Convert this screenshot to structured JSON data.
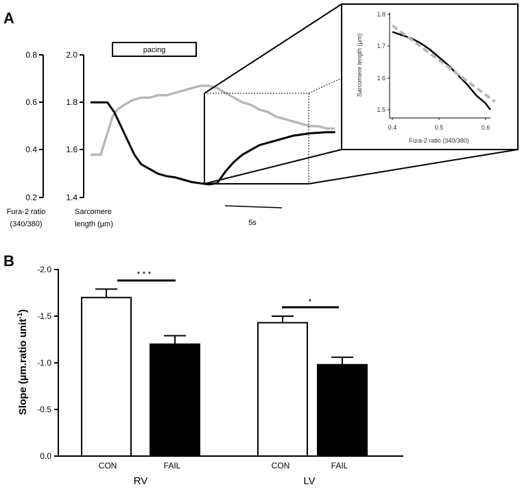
{
  "panel_a": {
    "label": "A",
    "pacing_label": "pacing",
    "fura_axis": {
      "ticks": [
        "0.8",
        "0.6",
        "0.4",
        "0.2"
      ],
      "label_line1": "Fura-2 ratio",
      "label_line2": "(340/380)"
    },
    "sl_axis": {
      "ticks": [
        "2.0",
        "1.8",
        "1.6",
        "1.4"
      ],
      "label_line1": "Sarcomere",
      "label_line2": "length (µm)"
    },
    "scale_bar": "5s",
    "inset": {
      "xlabel": "Fura-2 ratio (340/380)",
      "ylabel": "Sarcomere length (µm)",
      "xticks": [
        "0.4",
        "0.5",
        "0.6"
      ],
      "yticks": [
        "1.8",
        "1.7",
        "1.6",
        "1.5"
      ]
    }
  },
  "panel_b": {
    "label": "B",
    "ylabel": "Slope  (µm.ratio unit",
    "ylabel_sup": "-1",
    "ylabel_close": ")",
    "yticks": [
      "-2.0",
      "-1.5",
      "-1.0",
      "-0.5",
      "0.0"
    ],
    "groups": [
      "RV",
      "LV"
    ],
    "bar_labels": [
      "CON",
      "FAIL",
      "CON",
      "FAIL"
    ],
    "sig": [
      "* * *",
      "*"
    ]
  },
  "colors": {
    "con": "#ffffff",
    "fail": "#000000",
    "fura_trace": "#b8b8b8",
    "sl_trace": "#000000"
  },
  "chart_data": [
    {
      "type": "line",
      "panel": "A",
      "series": [
        {
          "name": "Fura-2 ratio (340/380)",
          "color": "#b8b8b8",
          "x": [
            0,
            0.6,
            1.0,
            1.3,
            1.6,
            2.0,
            2.5,
            3.0,
            3.5,
            4.0,
            4.5,
            5.0,
            5.5,
            6.0,
            6.5,
            7.0,
            7.5,
            8.0,
            8.5,
            9.0,
            9.5,
            10.0,
            10.5,
            11.0,
            11.5,
            12.0,
            12.5,
            13.0,
            13.5,
            14.0,
            14.5
          ],
          "y": [
            0.38,
            0.38,
            0.47,
            0.54,
            0.57,
            0.59,
            0.61,
            0.62,
            0.62,
            0.63,
            0.63,
            0.64,
            0.65,
            0.66,
            0.67,
            0.67,
            0.66,
            0.64,
            0.62,
            0.6,
            0.59,
            0.57,
            0.56,
            0.54,
            0.53,
            0.52,
            0.51,
            0.5,
            0.5,
            0.49,
            0.49
          ]
        },
        {
          "name": "Sarcomere length (µm)",
          "color": "#000000",
          "x": [
            0,
            1.0,
            1.4,
            1.8,
            2.2,
            2.6,
            3.0,
            3.5,
            4.0,
            4.5,
            5.0,
            5.5,
            6.0,
            6.5,
            7.0,
            7.5,
            8.0,
            8.5,
            9.0,
            10.0,
            11.0,
            12.0,
            13.0,
            14.0,
            14.5
          ],
          "y": [
            1.8,
            1.8,
            1.76,
            1.7,
            1.64,
            1.58,
            1.54,
            1.52,
            1.5,
            1.49,
            1.485,
            1.475,
            1.465,
            1.46,
            1.455,
            1.46,
            1.51,
            1.55,
            1.58,
            1.62,
            1.64,
            1.66,
            1.67,
            1.675,
            1.675
          ]
        }
      ],
      "xlabel": "",
      "scale_bar_s": 5,
      "ylim_left": [
        0.2,
        0.8
      ],
      "ylim_right": [
        1.4,
        2.0
      ]
    },
    {
      "type": "line",
      "panel": "A inset",
      "series": [
        {
          "name": "",
          "color": "#000000",
          "x": [
            0.4,
            0.42,
            0.44,
            0.46,
            0.48,
            0.5,
            0.52,
            0.54,
            0.56,
            0.58,
            0.6,
            0.61
          ],
          "y": [
            1.745,
            1.735,
            1.725,
            1.71,
            1.69,
            1.665,
            1.64,
            1.61,
            1.58,
            1.545,
            1.52,
            1.5
          ]
        },
        {
          "name": "",
          "color": "#b8b8b8",
          "dashed": true,
          "x": [
            0.4,
            0.62
          ],
          "y": [
            1.765,
            1.525
          ]
        }
      ],
      "xlabel": "Fura-2 ratio (340/380)",
      "ylabel": "Sarcomere length (µm)",
      "xlim": [
        0.4,
        0.62
      ],
      "ylim": [
        1.5,
        1.8
      ]
    },
    {
      "type": "bar",
      "panel": "B",
      "categories": [
        "CON",
        "FAIL",
        "CON",
        "FAIL"
      ],
      "groups": [
        "RV",
        "RV",
        "LV",
        "LV"
      ],
      "values": [
        -1.7,
        -1.2,
        -1.43,
        -0.98
      ],
      "errors": [
        0.09,
        0.09,
        0.07,
        0.08
      ],
      "colors": [
        "#ffffff",
        "#000000",
        "#ffffff",
        "#000000"
      ],
      "ylim": [
        -2.0,
        0.0
      ],
      "ylabel": "Slope  (µm.ratio unit-1)"
    }
  ]
}
